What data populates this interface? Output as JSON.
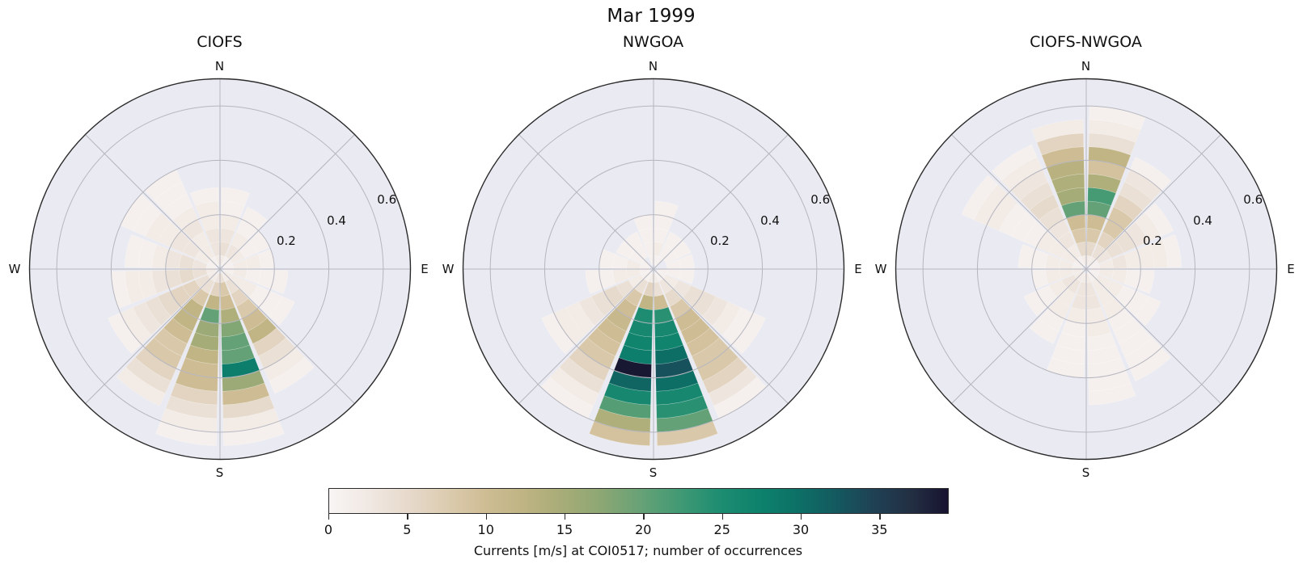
{
  "figure": {
    "suptitle": "Mar 1999",
    "background": "#ffffff",
    "axes_bg": "#eaeaf2",
    "grid_color": "#b6b6bf",
    "outline_color": "#2b2b2b",
    "text_color": "#111111"
  },
  "polar_axes": {
    "rmax": 0.7,
    "rticks": [
      0.2,
      0.4,
      0.6
    ],
    "rtick_labels": [
      "0.2",
      "0.4",
      "0.6"
    ],
    "rlabel_azimuth_deg": 67.5,
    "spoke_step_deg": 45,
    "compass_labels": {
      "n": "N",
      "e": "E",
      "s": "S",
      "w": "W"
    },
    "sector_width_deg": 22.5,
    "r_bin_edges": [
      0,
      0.05,
      0.1,
      0.15,
      0.2,
      0.25,
      0.3,
      0.35,
      0.4,
      0.45,
      0.5,
      0.55,
      0.6,
      0.65
    ]
  },
  "colorbar": {
    "label": "Currents [m/s] at COI0517; number of occurrences",
    "ticks": [
      0,
      5,
      10,
      15,
      20,
      25,
      30,
      35
    ],
    "vmin": 0,
    "vmax": 39.4,
    "stops": [
      [
        0.0,
        "#f8f5f4"
      ],
      [
        0.06,
        "#f1e9e4"
      ],
      [
        0.13,
        "#e6d9cb"
      ],
      [
        0.19,
        "#dcccb0"
      ],
      [
        0.25,
        "#cfbd95"
      ],
      [
        0.32,
        "#bdb382"
      ],
      [
        0.38,
        "#a6ac77"
      ],
      [
        0.44,
        "#8ca774"
      ],
      [
        0.51,
        "#63a176"
      ],
      [
        0.57,
        "#3f9974"
      ],
      [
        0.63,
        "#1e8d71"
      ],
      [
        0.7,
        "#0d816c"
      ],
      [
        0.76,
        "#0d6f66"
      ],
      [
        0.82,
        "#14595f"
      ],
      [
        0.88,
        "#1f4154"
      ],
      [
        0.94,
        "#232f43"
      ],
      [
        1.0,
        "#171330"
      ]
    ]
  },
  "chart_data": [
    {
      "type": "heatmap",
      "subtype": "polar-2d-histogram",
      "title": "CIOFS",
      "sector_start_deg": [
        0,
        22.5,
        45,
        67.5,
        90,
        112.5,
        135,
        157.5,
        180,
        202.5,
        225,
        247.5,
        270,
        292.5,
        315,
        337.5
      ],
      "values": [
        [
          2,
          4,
          3,
          2,
          1,
          1,
          0,
          0,
          0,
          0,
          0,
          0,
          0
        ],
        [
          1,
          3,
          2,
          1,
          1,
          0,
          0,
          0,
          0,
          0,
          0,
          0,
          0
        ],
        [
          1,
          2,
          1,
          1,
          0,
          0,
          0,
          0,
          0,
          0,
          0,
          0,
          0
        ],
        [
          1,
          2,
          2,
          1,
          0,
          0,
          0,
          0,
          0,
          0,
          0,
          0,
          0
        ],
        [
          1,
          2,
          1,
          1,
          1,
          0,
          0,
          0,
          0,
          0,
          0,
          0,
          0
        ],
        [
          2,
          2,
          2,
          1,
          1,
          1,
          0,
          0,
          0,
          0,
          0,
          0,
          0
        ],
        [
          2,
          4,
          6,
          8,
          10,
          12,
          6,
          4,
          2,
          1,
          0,
          0,
          0
        ],
        [
          4,
          8,
          10,
          14,
          18,
          20,
          20,
          28,
          16,
          10,
          5,
          2,
          1
        ],
        [
          3,
          6,
          12,
          20,
          16,
          15,
          12,
          10,
          10,
          6,
          4,
          2,
          1
        ],
        [
          2,
          4,
          8,
          12,
          12,
          10,
          8,
          8,
          6,
          4,
          2,
          0,
          0
        ],
        [
          2,
          4,
          6,
          6,
          5,
          4,
          3,
          2,
          1,
          0,
          0,
          0,
          0
        ],
        [
          2,
          4,
          5,
          4,
          3,
          2,
          2,
          1,
          0,
          0,
          0,
          0,
          0
        ],
        [
          1,
          3,
          4,
          3,
          2,
          1,
          1,
          0,
          0,
          0,
          0,
          0,
          0
        ],
        [
          1,
          2,
          3,
          3,
          2,
          2,
          1,
          1,
          0,
          0,
          0,
          0,
          0
        ],
        [
          1,
          2,
          2,
          3,
          2,
          1,
          1,
          1,
          0,
          0,
          0,
          0,
          0
        ],
        [
          2,
          3,
          3,
          2,
          2,
          1,
          0,
          0,
          0,
          0,
          0,
          0,
          0
        ]
      ]
    },
    {
      "type": "heatmap",
      "subtype": "polar-2d-histogram",
      "title": "NWGOA",
      "sector_start_deg": [
        0,
        22.5,
        45,
        67.5,
        90,
        112.5,
        135,
        157.5,
        180,
        202.5,
        225,
        247.5,
        270,
        292.5,
        315,
        337.5
      ],
      "values": [
        [
          1,
          2,
          1,
          1,
          1,
          0,
          0,
          0,
          0,
          0,
          0,
          0,
          0
        ],
        [
          1,
          1,
          1,
          0,
          0,
          0,
          0,
          0,
          0,
          0,
          0,
          0,
          0
        ],
        [
          0,
          1,
          1,
          0,
          0,
          0,
          0,
          0,
          0,
          0,
          0,
          0,
          0
        ],
        [
          0,
          1,
          1,
          0,
          0,
          0,
          0,
          0,
          0,
          0,
          0,
          0,
          0
        ],
        [
          1,
          1,
          1,
          0,
          0,
          0,
          0,
          0,
          0,
          0,
          0,
          0,
          0
        ],
        [
          1,
          2,
          3,
          4,
          4,
          3,
          2,
          1,
          1,
          0,
          0,
          0,
          0
        ],
        [
          1,
          3,
          5,
          8,
          10,
          10,
          9,
          8,
          8,
          6,
          3,
          1,
          0
        ],
        [
          2,
          4,
          10,
          24,
          26,
          27,
          30,
          33,
          30,
          26,
          24,
          20,
          8
        ],
        [
          2,
          6,
          12,
          25,
          26,
          27,
          28,
          39,
          31,
          26,
          21,
          14,
          9
        ],
        [
          1,
          4,
          8,
          10,
          11,
          10,
          9,
          8,
          6,
          4,
          2,
          1,
          0
        ],
        [
          1,
          2,
          4,
          5,
          4,
          3,
          2,
          2,
          1,
          0,
          0,
          0,
          0
        ],
        [
          1,
          2,
          2,
          1,
          1,
          0,
          0,
          0,
          0,
          0,
          0,
          0,
          0
        ],
        [
          1,
          2,
          1,
          1,
          0,
          0,
          0,
          0,
          0,
          0,
          0,
          0,
          0
        ],
        [
          1,
          1,
          1,
          0,
          0,
          0,
          0,
          0,
          0,
          0,
          0,
          0,
          0
        ],
        [
          0,
          1,
          1,
          0,
          0,
          0,
          0,
          0,
          0,
          0,
          0,
          0,
          0
        ],
        [
          1,
          1,
          1,
          1,
          0,
          0,
          0,
          0,
          0,
          0,
          0,
          0,
          0
        ]
      ]
    },
    {
      "type": "heatmap",
      "subtype": "polar-2d-histogram",
      "title": "CIOFS-NWGOA",
      "sector_start_deg": [
        0,
        22.5,
        45,
        67.5,
        90,
        112.5,
        135,
        157.5,
        180,
        202.5,
        225,
        247.5,
        270,
        292.5,
        315,
        337.5
      ],
      "values": [
        [
          2,
          5,
          8,
          10,
          20,
          22,
          14,
          9,
          12,
          4,
          2,
          1,
          0
        ],
        [
          2,
          4,
          6,
          8,
          8,
          6,
          4,
          3,
          1,
          0,
          0,
          0,
          0
        ],
        [
          1,
          3,
          4,
          4,
          3,
          2,
          1,
          0,
          0,
          0,
          0,
          0,
          0
        ],
        [
          1,
          2,
          3,
          2,
          2,
          2,
          1,
          0,
          0,
          0,
          0,
          0,
          0
        ],
        [
          1,
          2,
          2,
          1,
          1,
          0,
          0,
          0,
          0,
          0,
          0,
          0,
          0
        ],
        [
          1,
          2,
          2,
          1,
          1,
          1,
          0,
          0,
          0,
          0,
          0,
          0,
          0
        ],
        [
          1,
          2,
          2,
          2,
          1,
          1,
          1,
          1,
          1,
          0,
          0,
          0,
          0
        ],
        [
          2,
          3,
          3,
          2,
          2,
          1,
          1,
          1,
          1,
          1,
          0,
          0,
          0
        ],
        [
          2,
          3,
          3,
          2,
          1,
          1,
          1,
          1,
          0,
          0,
          0,
          0,
          0
        ],
        [
          2,
          3,
          2,
          2,
          1,
          1,
          0,
          0,
          0,
          0,
          0,
          0,
          0
        ],
        [
          2,
          3,
          2,
          1,
          1,
          0,
          0,
          0,
          0,
          0,
          0,
          0,
          0
        ],
        [
          2,
          2,
          2,
          1,
          0,
          0,
          0,
          0,
          0,
          0,
          0,
          0,
          0
        ],
        [
          1,
          2,
          2,
          1,
          1,
          0,
          0,
          0,
          0,
          0,
          0,
          0,
          0
        ],
        [
          1,
          2,
          2,
          2,
          1,
          1,
          1,
          2,
          2,
          1,
          0,
          0,
          0
        ],
        [
          1,
          2,
          3,
          3,
          4,
          5,
          4,
          3,
          2,
          1,
          0,
          0,
          0
        ],
        [
          2,
          5,
          8,
          10,
          20,
          15,
          14,
          13,
          10,
          6,
          2,
          0,
          0
        ]
      ]
    }
  ]
}
